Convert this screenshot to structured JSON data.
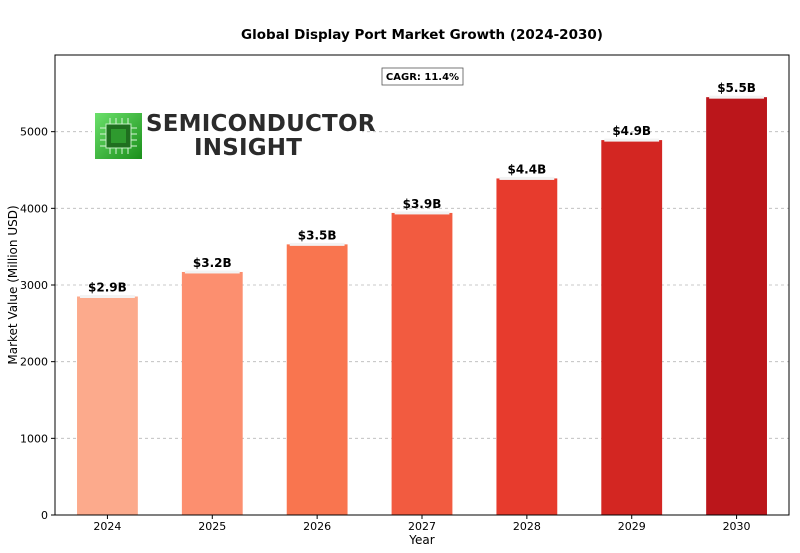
{
  "chart_data": {
    "type": "bar",
    "title": "Global Display Port Market Growth (2024-2030)",
    "xlabel": "Year",
    "ylabel": "Market Value (Million USD)",
    "categories": [
      "2024",
      "2025",
      "2026",
      "2027",
      "2028",
      "2029",
      "2030"
    ],
    "values": [
      2850,
      3170,
      3530,
      3940,
      4390,
      4890,
      5450
    ],
    "data_labels": [
      "$2.9B",
      "$3.2B",
      "$3.5B",
      "$3.9B",
      "$4.4B",
      "$4.9B",
      "$5.5B"
    ],
    "colors": [
      "#fcaa8c",
      "#fc8f6f",
      "#f9754f",
      "#f25b40",
      "#e73b2d",
      "#d32622",
      "#bb161b"
    ],
    "ylim": [
      0,
      6000
    ],
    "yticks": [
      0,
      1000,
      2000,
      3000,
      4000,
      5000
    ],
    "grid": "y-dashed",
    "annotation": "CAGR: 11.4%"
  },
  "logo": {
    "line1": "SEMICONDUCTOR",
    "line2": "INSIGHT",
    "accent": "#3ac23a"
  }
}
